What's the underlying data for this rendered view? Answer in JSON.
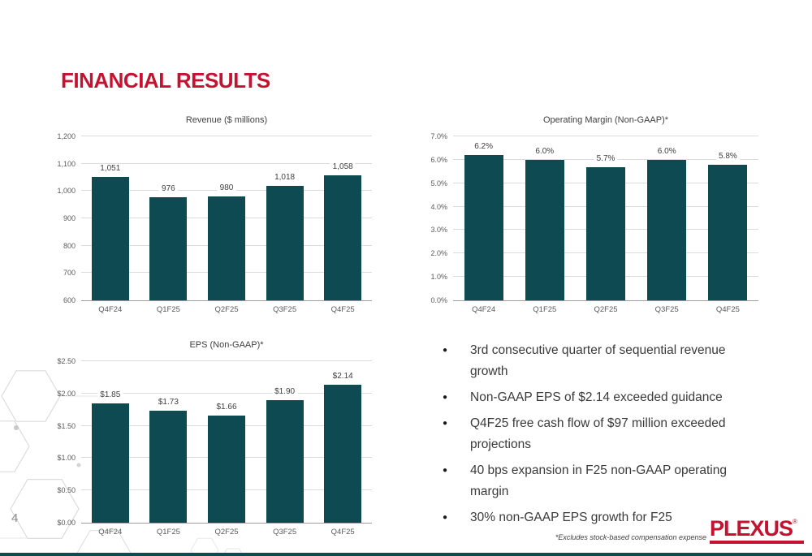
{
  "slide": {
    "title": "FINANCIAL RESULTS",
    "page_number": "4",
    "footnote": "*Excludes stock-based compensation expense",
    "logo": "PLEXUS",
    "logo_reg": "®",
    "bullet_char": "●"
  },
  "colors": {
    "bar_fill": "#0e4a52",
    "accent_red": "#c41230",
    "gridline": "#dcdcdc"
  },
  "bullets": [
    "3rd consecutive quarter of sequential revenue growth",
    "Non-GAAP EPS of $2.14 exceeded guidance",
    "Q4F25 free cash flow of $97 million exceeded projections",
    "40 bps expansion in F25 non-GAAP operating margin",
    "30% non-GAAP EPS growth for F25"
  ],
  "chart_data": [
    {
      "type": "bar",
      "title": "Revenue ($ millions)",
      "categories": [
        "Q4F24",
        "Q1F25",
        "Q2F25",
        "Q3F25",
        "Q4F25"
      ],
      "values": [
        1051,
        976,
        980,
        1018,
        1058
      ],
      "labels": [
        "1,051",
        "976",
        "980",
        "1,018",
        "1,058"
      ],
      "ylim": [
        600,
        1200
      ],
      "yticks": [
        600,
        700,
        800,
        900,
        1000,
        1100,
        1200
      ],
      "ytick_labels": [
        "600",
        "700",
        "800",
        "900",
        "1,000",
        "1,100",
        "1,200"
      ],
      "grid": true,
      "legend": "none"
    },
    {
      "type": "bar",
      "title": "Operating Margin (Non-GAAP)*",
      "categories": [
        "Q4F24",
        "Q1F25",
        "Q2F25",
        "Q3F25",
        "Q4F25"
      ],
      "values": [
        6.2,
        6.0,
        5.7,
        6.0,
        5.8
      ],
      "labels": [
        "6.2%",
        "6.0%",
        "5.7%",
        "6.0%",
        "5.8%"
      ],
      "ylim": [
        0,
        7
      ],
      "yticks": [
        0,
        1,
        2,
        3,
        4,
        5,
        6,
        7
      ],
      "ytick_labels": [
        "0.0%",
        "1.0%",
        "2.0%",
        "3.0%",
        "4.0%",
        "5.0%",
        "6.0%",
        "7.0%"
      ],
      "grid": true,
      "legend": "none"
    },
    {
      "type": "bar",
      "title": "EPS (Non-GAAP)*",
      "categories": [
        "Q4F24",
        "Q1F25",
        "Q2F25",
        "Q3F25",
        "Q4F25"
      ],
      "values": [
        1.85,
        1.73,
        1.66,
        1.9,
        2.14
      ],
      "labels": [
        "$1.85",
        "$1.73",
        "$1.66",
        "$1.90",
        "$2.14"
      ],
      "ylim": [
        0,
        2.5
      ],
      "yticks": [
        0,
        0.5,
        1.0,
        1.5,
        2.0,
        2.5
      ],
      "ytick_labels": [
        "$0.00",
        "$0.50",
        "$1.00",
        "$1.50",
        "$2.00",
        "$2.50"
      ],
      "grid": true,
      "legend": "none"
    }
  ]
}
